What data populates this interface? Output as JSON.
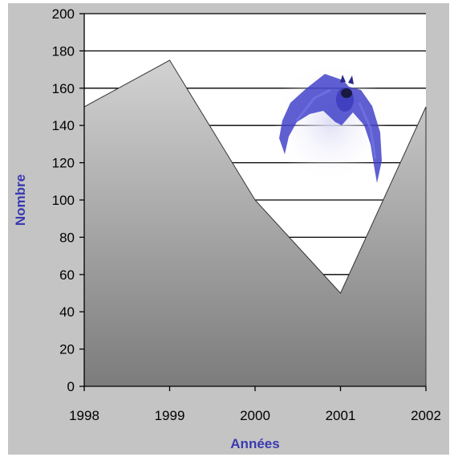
{
  "chart_data": {
    "type": "area",
    "categories": [
      "1998",
      "1999",
      "2000",
      "2001",
      "2002"
    ],
    "series": [
      {
        "values": [
          150,
          175,
          100,
          50,
          150
        ]
      }
    ],
    "xlabel": "Années",
    "ylabel": "Nombre",
    "ylim": [
      0,
      200
    ],
    "yticks": [
      "0",
      "20",
      "40",
      "60",
      "80",
      "100",
      "120",
      "140",
      "160",
      "180",
      "200"
    ],
    "grid": true,
    "colors": {
      "plot_background": "#ffffff",
      "frame_background": "#c4c4c4",
      "area_top": "#d2d2d2",
      "area_bottom": "#7c7c7c",
      "axis_title": "#3a3ab0",
      "decoration": "#3c3cc8"
    },
    "decoration_icon": "bat-clipart"
  }
}
